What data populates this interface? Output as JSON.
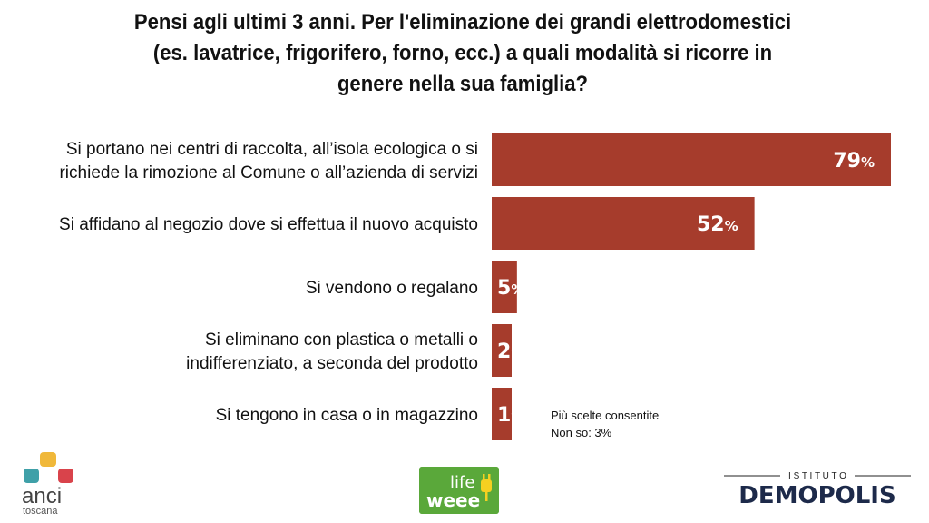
{
  "chart_data": {
    "type": "bar",
    "orientation": "horizontal",
    "title": "Pensi agli ultimi 3 anni. Per l'eliminazione dei grandi elettrodomestici (es. lavatrice, frigorifero, forno, ecc.) a quali modalità si ricorre in genere nella sua famiglia?",
    "categories": [
      [
        "Si portano nei centri di raccolta, all’isola ecologica o si",
        "richiede la rimozione al Comune o all’azienda di servizi"
      ],
      [
        "Si affidano al negozio dove si effettua il nuovo acquisto"
      ],
      [
        "Si vendono o regalano"
      ],
      [
        "Si eliminano con plastica o metalli o",
        "indifferenziato, a seconda del prodotto"
      ],
      [
        "Si tengono in casa o in magazzino"
      ]
    ],
    "values": [
      79,
      52,
      5,
      2,
      1
    ],
    "value_labels": [
      "79%",
      "52%",
      "5%",
      "2%",
      "1%"
    ],
    "xlim": [
      0,
      79
    ],
    "bar_color": "#a63c2c",
    "grid": false,
    "legend": "none"
  },
  "notes": [
    "Più scelte consentite",
    "Non so: 3%"
  ],
  "logos": {
    "anci": {
      "text_main": "anci",
      "text_sub": "toscana"
    },
    "life": {
      "text_top": "life",
      "text_bottom": "weee"
    },
    "demopolis": {
      "text_top": "I S T I T U T O",
      "text_main": "DEMOPOLIS"
    }
  }
}
